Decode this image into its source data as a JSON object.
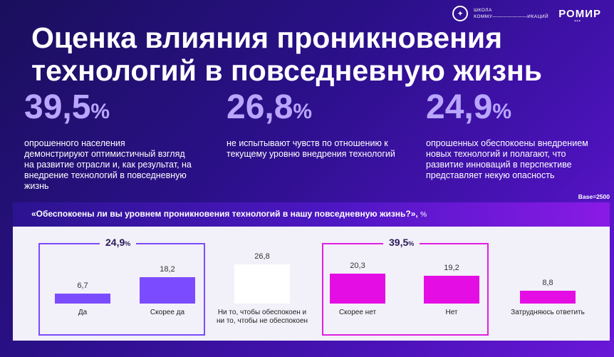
{
  "logos": {
    "hse_text_line1": "ШКОЛА",
    "hse_text_line2": "КОММУ———————ИКАЦИЙ",
    "romir": "РОМИР",
    "romir_dots": "▪▪▪"
  },
  "title": "Оценка влияния проникновения технологий в повседневную жизнь",
  "stats": [
    {
      "value": "39,5",
      "unit": "%",
      "desc": "опрошенного населения демонстрируют оптимистичный взгляд на развитие отрасли и, как результат, на внедрение технологий в повседневную жизнь"
    },
    {
      "value": "26,8",
      "unit": "%",
      "desc": "не испытывают чувств по отношению к текущему уровню внедрения технологий"
    },
    {
      "value": "24,9",
      "unit": "%",
      "desc": "опрошенных обеспокоены внедрением новых технологий и полагают, что развитие инноваций в перспективе представляет некую опасность"
    }
  ],
  "base": "Base=2500",
  "question": "«Обеспокоены ли вы уровнем проникновения технологий в нашу повседневную жизнь?»,",
  "question_unit": "%",
  "groups": [
    {
      "label": "24,9",
      "unit": "%",
      "color": "#7b4cff"
    },
    {
      "label": "39,5",
      "unit": "%",
      "color": "#e020e0"
    }
  ],
  "chart_data": {
    "type": "bar",
    "categories": [
      "Да",
      "Скорее да",
      "Ни то, чтобы обеспокоен и ни то, чтобы не обеспокоен",
      "Скорее нет",
      "Нет",
      "Затрудняюсь ответить"
    ],
    "values": [
      6.7,
      18.2,
      26.8,
      20.3,
      19.2,
      8.8
    ],
    "value_labels": [
      "6,7",
      "18,2",
      "26,8",
      "20,3",
      "19,2",
      "8,8"
    ],
    "colors": [
      "#7b4cff",
      "#7b4cff",
      "#ffffff",
      "#e40ee4",
      "#e40ee4",
      "#e40ee4"
    ],
    "ylim": [
      0,
      30
    ]
  }
}
